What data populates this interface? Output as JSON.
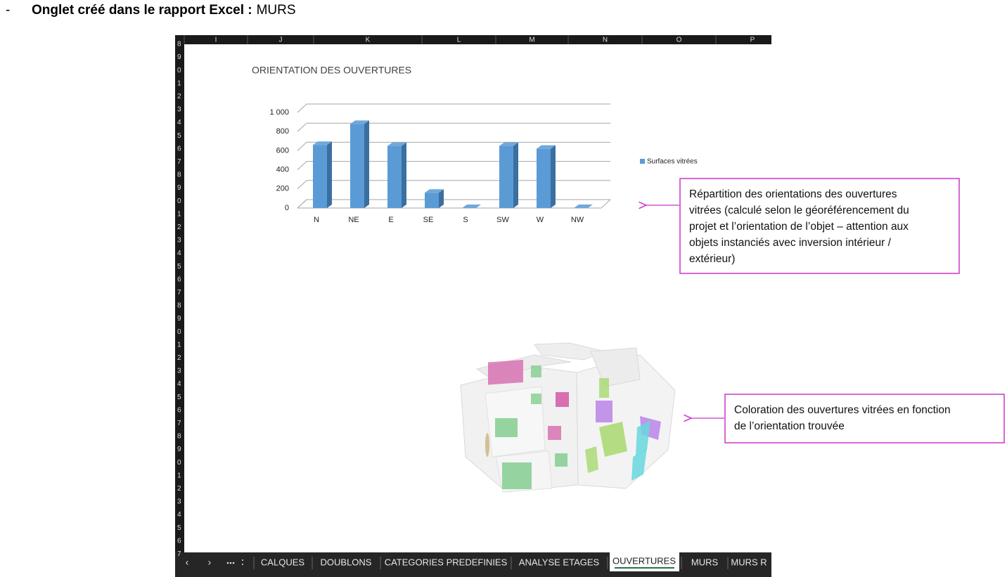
{
  "header": {
    "bullet": "-",
    "label": "Onglet créé dans le rapport Excel :",
    "value": "MURS"
  },
  "spreadsheet": {
    "columns": [
      "I",
      "J",
      "K",
      "L",
      "M",
      "N",
      "O",
      "P"
    ],
    "row_numbers": [
      "8",
      "9",
      "0",
      "1",
      "2",
      "3",
      "4",
      "5",
      "6",
      "7",
      "8",
      "9",
      "0",
      "1",
      "2",
      "3",
      "4",
      "5",
      "6",
      "7",
      "8",
      "9",
      "0",
      "1",
      "2",
      "3",
      "4",
      "5",
      "6",
      "7",
      "8",
      "9",
      "0",
      "1",
      "2",
      "3",
      "4",
      "5",
      "6",
      "7"
    ],
    "tabs": [
      "CALQUES",
      "DOUBLONS",
      "CATEGORIES PREDEFINIES",
      "ANALYSE ETAGES",
      "OUVERTURES",
      "MURS",
      "MURS R"
    ],
    "active_tab": "OUVERTURES"
  },
  "chart_data": {
    "type": "bar",
    "title": "ORIENTATION DES OUVERTURES",
    "categories": [
      "N",
      "NE",
      "E",
      "SE",
      "S",
      "SW",
      "W",
      "NW"
    ],
    "series": [
      {
        "name": "Surfaces vitrées",
        "color": "#5b9bd5",
        "values": [
          660,
          880,
          650,
          160,
          0,
          650,
          620,
          0
        ]
      }
    ],
    "ylim": [
      0,
      1000
    ],
    "yticks": [
      0,
      200,
      400,
      600,
      800,
      {
        "value": 1000,
        "label": "1 000"
      }
    ],
    "grid": true,
    "legend": "right"
  },
  "annotations": [
    {
      "lines": [
        "Répartition des orientations des ouvertures",
        "vitrées (calculé selon le géoréférencement du",
        "projet et l’orientation de l’objet – attention aux",
        "objets instanciés avec inversion intérieur /",
        "extérieur)"
      ]
    },
    {
      "lines": [
        "Coloration des ouvertures vitrées en fonction",
        "de l’orientation trouvée"
      ]
    }
  ]
}
